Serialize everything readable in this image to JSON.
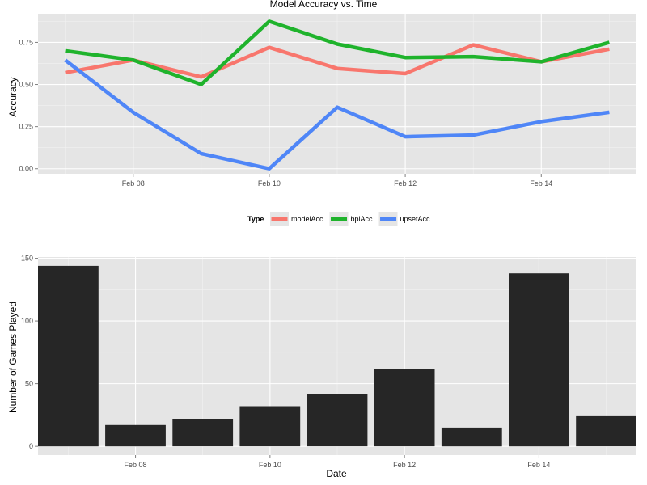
{
  "chart_data": [
    {
      "type": "line",
      "title": "Model Accuracy vs. Time",
      "ylabel": "Accuracy",
      "xlabel": "",
      "x": [
        "2014-02-07",
        "2014-02-08",
        "2014-02-09",
        "2014-02-10",
        "2014-02-11",
        "2014-02-12",
        "2014-02-13",
        "2014-02-14",
        "2014-02-15"
      ],
      "xticks": [
        {
          "date": "2014-02-08",
          "label": "Feb 08"
        },
        {
          "date": "2014-02-10",
          "label": "Feb 10"
        },
        {
          "date": "2014-02-12",
          "label": "Feb 12"
        },
        {
          "date": "2014-02-14",
          "label": "Feb 14"
        }
      ],
      "yticks": [
        0.0,
        0.25,
        0.5,
        0.75
      ],
      "ytick_labels": [
        "0.00",
        "0.25",
        "0.50",
        "0.75"
      ],
      "ylim": [
        -0.03,
        0.92
      ],
      "grid": true,
      "legend": {
        "title": "Type",
        "position": "bottom"
      },
      "series": [
        {
          "name": "modelAcc",
          "color": "#f8766d",
          "values": [
            0.57,
            0.645,
            0.545,
            0.72,
            0.595,
            0.565,
            0.735,
            0.635,
            0.71
          ]
        },
        {
          "name": "bpiAcc",
          "color": "#1fb32c",
          "values": [
            0.7,
            0.645,
            0.5,
            0.875,
            0.74,
            0.66,
            0.665,
            0.635,
            0.75
          ]
        },
        {
          "name": "upsetAcc",
          "color": "#4f86f7",
          "values": [
            0.645,
            0.335,
            0.09,
            0.0,
            0.365,
            0.19,
            0.2,
            0.28,
            0.335
          ]
        }
      ]
    },
    {
      "type": "bar",
      "title": "",
      "ylabel": "Number of Games Played",
      "xlabel": "Date",
      "x": [
        "2014-02-07",
        "2014-02-08",
        "2014-02-09",
        "2014-02-10",
        "2014-02-11",
        "2014-02-12",
        "2014-02-13",
        "2014-02-14",
        "2014-02-15"
      ],
      "values": [
        144,
        17,
        22,
        32,
        42,
        62,
        15,
        138,
        24
      ],
      "bar_color": "#262626",
      "xticks": [
        {
          "date": "2014-02-08",
          "label": "Feb 08"
        },
        {
          "date": "2014-02-10",
          "label": "Feb 10"
        },
        {
          "date": "2014-02-12",
          "label": "Feb 12"
        },
        {
          "date": "2014-02-14",
          "label": "Feb 14"
        }
      ],
      "yticks": [
        0,
        50,
        100,
        150
      ],
      "ytick_labels": [
        "0",
        "50",
        "100",
        "150"
      ],
      "ylim": [
        -7,
        151
      ],
      "grid": true
    }
  ]
}
